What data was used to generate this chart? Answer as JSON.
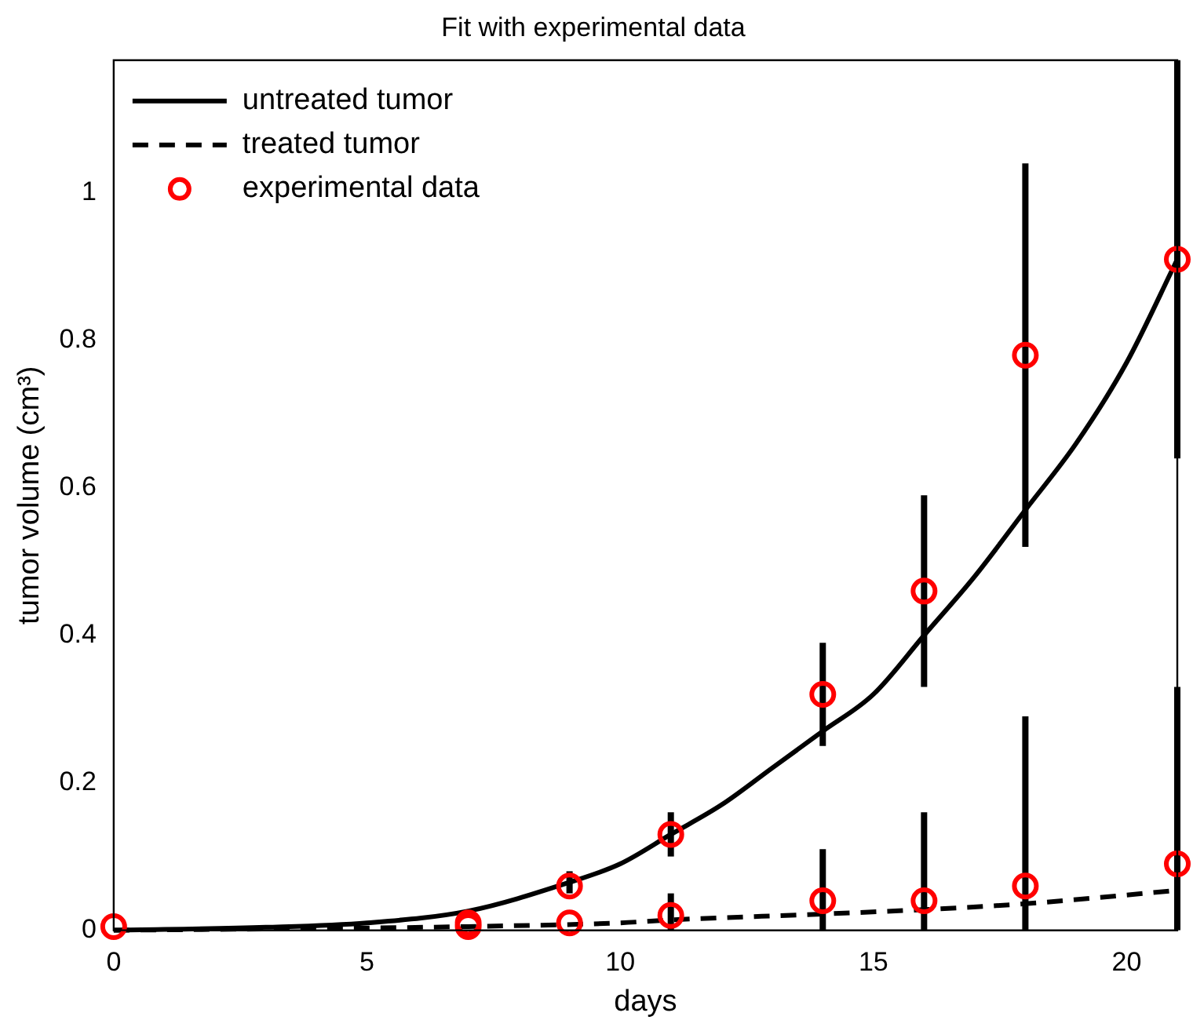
{
  "chart_data": {
    "type": "line",
    "title": "Fit with experimental data",
    "xlabel": "days",
    "ylabel": "tumor volume (cm³)",
    "xlim": [
      0,
      21
    ],
    "xticks": [
      0,
      5,
      10,
      15,
      20
    ],
    "ylim": [
      0,
      1.18
    ],
    "yticks": [
      0,
      0.2,
      0.4,
      0.6,
      0.8,
      1
    ],
    "grid": false,
    "legend": "top left",
    "series": [
      {
        "name": "untreated tumor",
        "color": "#000000",
        "line_style": "solid",
        "marker": "none",
        "x": [
          0,
          3,
          5,
          7,
          9,
          10,
          11,
          12,
          13,
          14,
          15,
          16,
          17,
          18,
          19,
          20,
          21
        ],
        "values": [
          0,
          0.004,
          0.01,
          0.026,
          0.065,
          0.09,
          0.13,
          0.17,
          0.22,
          0.27,
          0.32,
          0.4,
          0.48,
          0.57,
          0.66,
          0.77,
          0.91
        ]
      },
      {
        "name": "treated tumor",
        "color": "#000000",
        "line_style": "dashed",
        "marker": "none",
        "x": [
          0,
          5,
          7,
          10,
          11,
          14,
          16,
          18,
          21
        ],
        "values": [
          0,
          0.003,
          0.005,
          0.01,
          0.014,
          0.022,
          0.028,
          0.036,
          0.054
        ]
      },
      {
        "name": "experimental data",
        "type": "scatter",
        "color": "#ff0000",
        "marker": "circle",
        "x": [
          0,
          7,
          9,
          11,
          14,
          16,
          18,
          21,
          7,
          9,
          11,
          14,
          16,
          18,
          21
        ],
        "values": [
          0.005,
          0.01,
          0.06,
          0.13,
          0.32,
          0.46,
          0.78,
          0.91,
          0.005,
          0.01,
          0.02,
          0.04,
          0.04,
          0.06,
          0.09
        ],
        "errors": [
          null,
          null,
          [
            0.05,
            0.08
          ],
          [
            0.1,
            0.16
          ],
          [
            0.25,
            0.39
          ],
          [
            0.33,
            0.59
          ],
          [
            0.52,
            1.04
          ],
          [
            0.64,
            1.18
          ],
          null,
          null,
          [
            0,
            0.05
          ],
          [
            0,
            0.11
          ],
          [
            0,
            0.16
          ],
          [
            0,
            0.29
          ],
          [
            0,
            0.33
          ]
        ]
      }
    ]
  }
}
